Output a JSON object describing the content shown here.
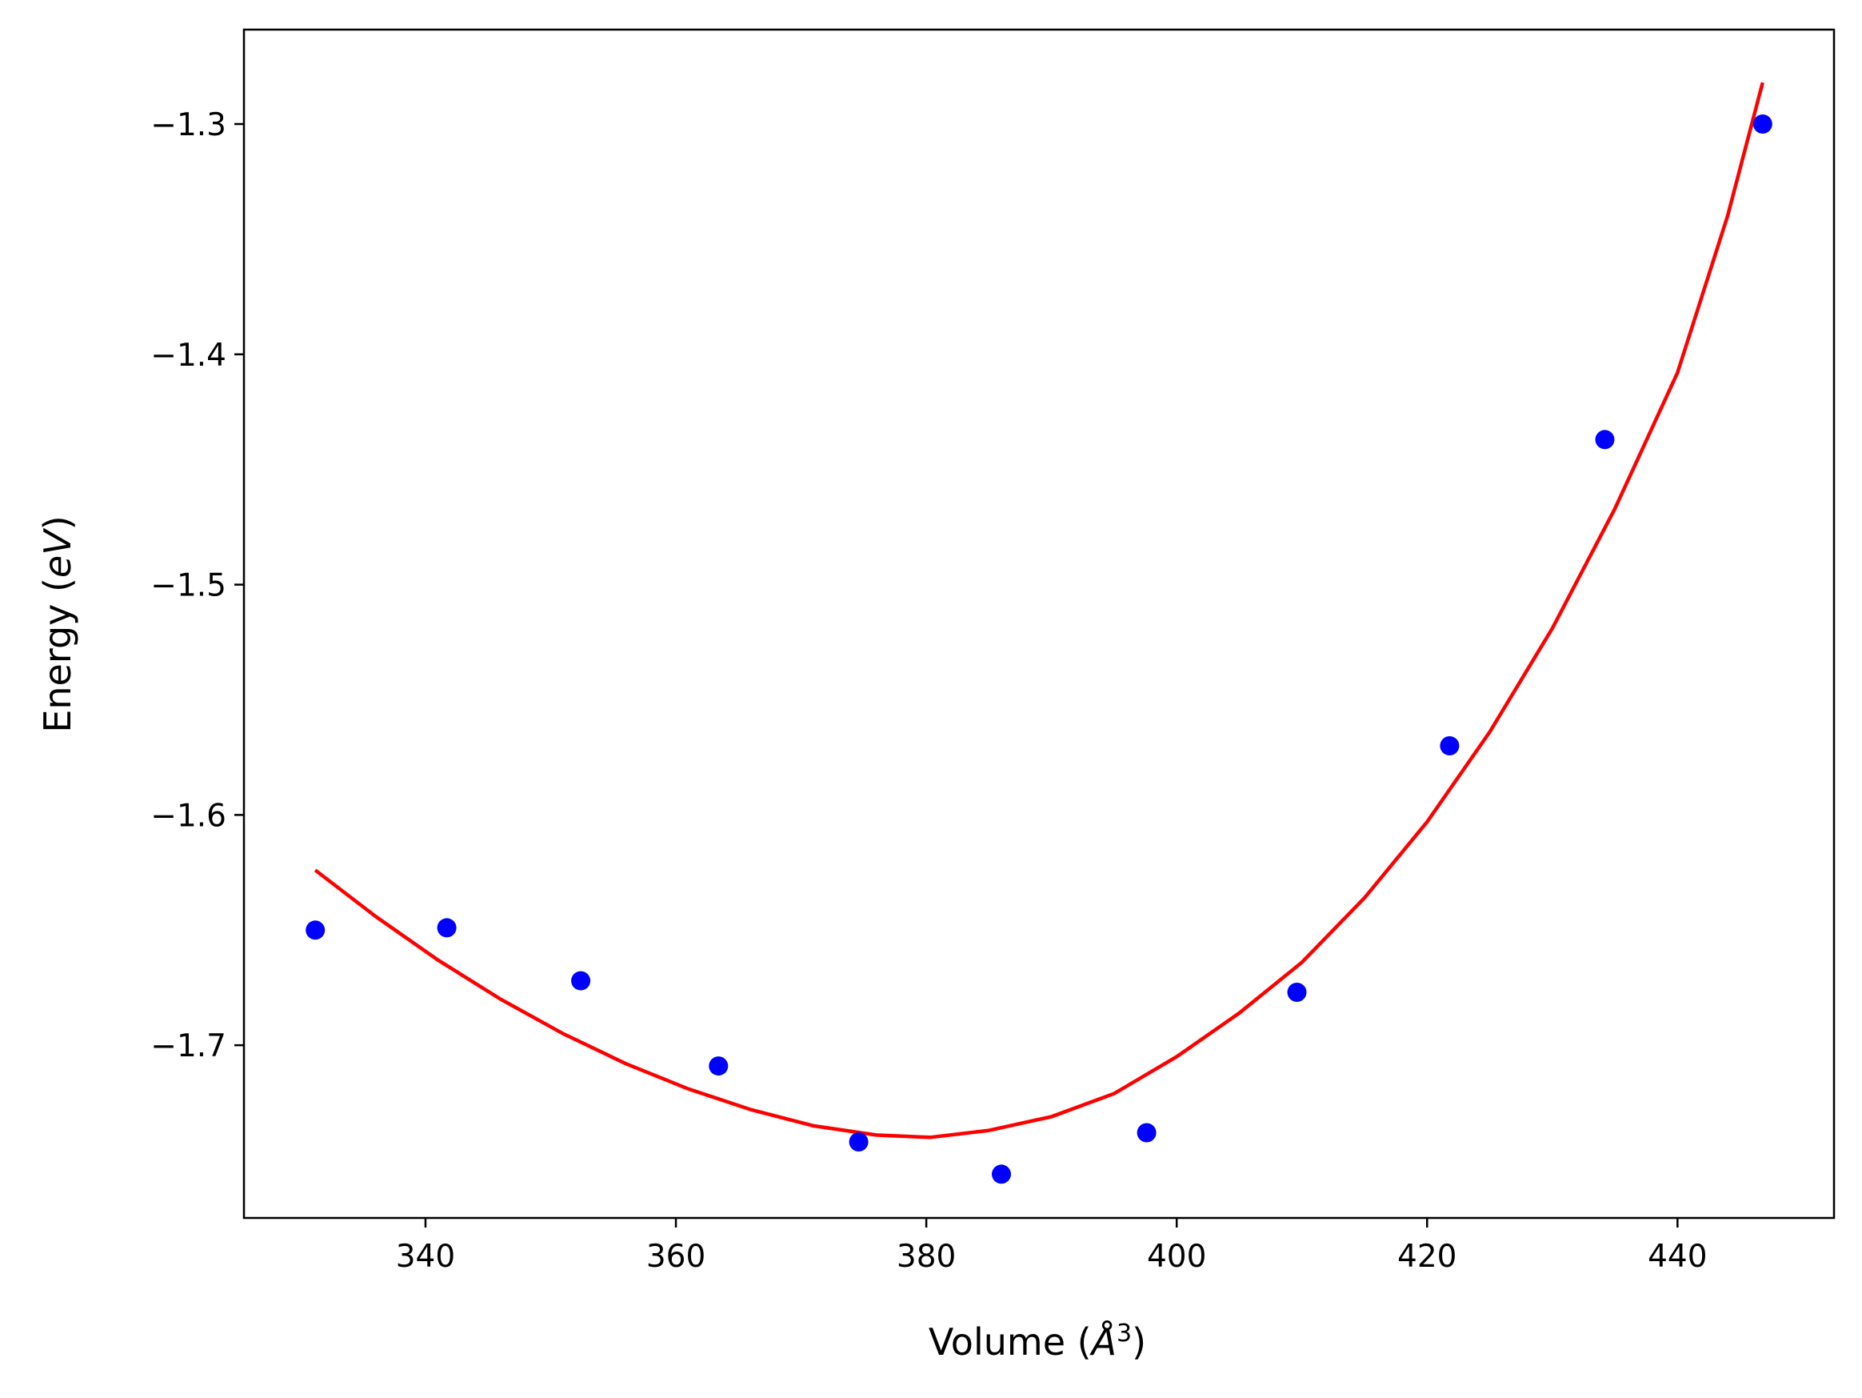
{
  "chart_data": {
    "type": "scatter",
    "title": "",
    "xlabel": "Volume (",
    "xlabel_symbol": "Å",
    "xlabel_exponent": "3",
    "xlabel_close": ")",
    "ylabel": "Energy (",
    "ylabel_symbol": "eV",
    "ylabel_close": ")",
    "xlim": [
      325.5,
      452.5
    ],
    "ylim": [
      -1.775,
      -1.259
    ],
    "xticks": [
      340,
      360,
      380,
      400,
      420,
      440
    ],
    "yticks": [
      -1.3,
      -1.4,
      -1.5,
      -1.6,
      -1.7
    ],
    "xtick_labels": [
      "340",
      "360",
      "380",
      "400",
      "420",
      "440"
    ],
    "ytick_labels": [
      "−1.3",
      "−1.4",
      "−1.5",
      "−1.6",
      "−1.7"
    ],
    "grid": false,
    "series": [
      {
        "type": "scatter",
        "color": "#0000ff",
        "x": [
          331.2,
          341.7,
          352.4,
          363.4,
          374.6,
          386.0,
          397.6,
          409.6,
          421.8,
          434.2,
          446.8
        ],
        "y": [
          -1.65,
          -1.649,
          -1.672,
          -1.709,
          -1.742,
          -1.756,
          -1.738,
          -1.677,
          -1.57,
          -1.437,
          -1.3
        ]
      },
      {
        "type": "line",
        "color": "#ff0000",
        "x": [
          331.2,
          336,
          341,
          346,
          351,
          356,
          361,
          366,
          371,
          376,
          380.3,
          385,
          390,
          395,
          400,
          405,
          410,
          415,
          420,
          425,
          430,
          435,
          440,
          444,
          446.8
        ],
        "y": [
          -1.624,
          -1.644,
          -1.663,
          -1.68,
          -1.695,
          -1.708,
          -1.719,
          -1.728,
          -1.735,
          -1.739,
          -1.74,
          -1.737,
          -1.731,
          -1.721,
          -1.705,
          -1.686,
          -1.664,
          -1.636,
          -1.603,
          -1.564,
          -1.519,
          -1.467,
          -1.408,
          -1.34,
          -1.282
        ]
      }
    ]
  }
}
